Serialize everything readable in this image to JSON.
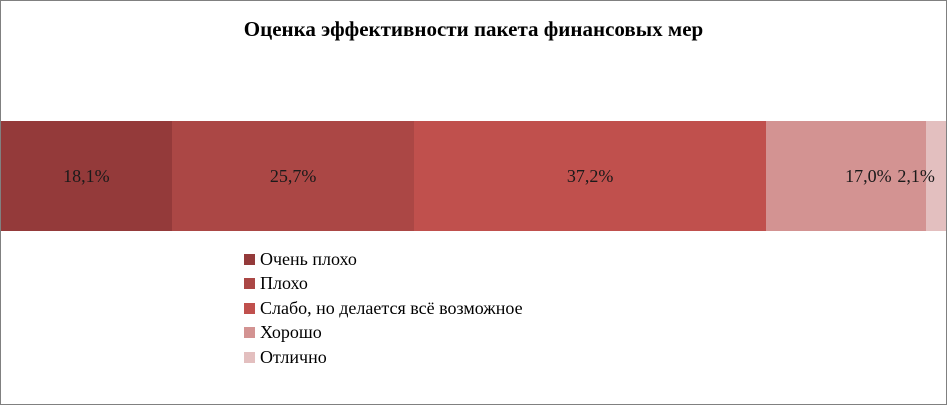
{
  "chart_data": {
    "type": "bar",
    "orientation": "horizontal-stacked-100",
    "title": "Оценка эффективности пакета финансовых мер",
    "legend_position": "bottom",
    "grid": false,
    "series": [
      {
        "name": "Очень плохо",
        "value": 18.1,
        "label": "18,1%",
        "color": "#943a3a"
      },
      {
        "name": "Плохо",
        "value": 25.7,
        "label": "25,7%",
        "color": "#ab4745"
      },
      {
        "name": "Слабо, но делается всё возможное",
        "value": 37.2,
        "label": "37,2%",
        "color": "#c0504d"
      },
      {
        "name": "Хорошо",
        "value": 17.0,
        "label": "17,0%",
        "color": "#d39392"
      },
      {
        "name": "Отлично",
        "value": 2.1,
        "label": "2,1%",
        "color": "#e3bfbf"
      }
    ]
  }
}
